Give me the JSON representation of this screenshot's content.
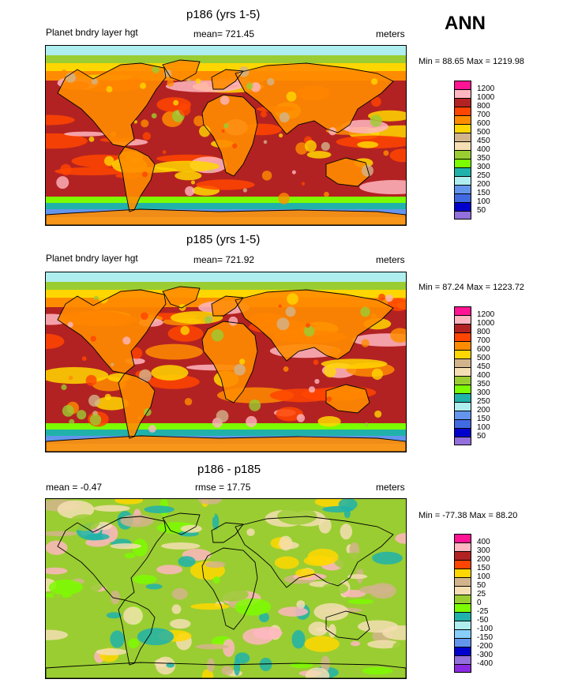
{
  "season": "ANN",
  "panels": [
    {
      "title": "p186 (yrs 1-5)",
      "left_label": "Planet bndry layer hgt",
      "center_label": "mean= 721.45",
      "units": "meters",
      "minmax": "Min =  88.65 Max = 1219.98",
      "scale": "abs",
      "levels": [
        "1200",
        "1000",
        "800",
        "700",
        "600",
        "500",
        "450",
        "400",
        "350",
        "300",
        "250",
        "200",
        "150",
        "100",
        "50"
      ],
      "colors": [
        "#ff1493",
        "#ffb6c1",
        "#b22222",
        "#ff4500",
        "#ff8c00",
        "#ffd700",
        "#d2b48c",
        "#f5deb3",
        "#9acd32",
        "#7cfc00",
        "#20b2aa",
        "#afeeee",
        "#6495ed",
        "#4169e1",
        "#0000cd",
        "#9370db"
      ]
    },
    {
      "title": "p185 (yrs 1-5)",
      "left_label": "Planet bndry layer hgt",
      "center_label": "mean= 721.92",
      "units": "meters",
      "minmax": "Min =  87.24 Max = 1223.72",
      "scale": "abs",
      "levels": [
        "1200",
        "1000",
        "800",
        "700",
        "600",
        "500",
        "450",
        "400",
        "350",
        "300",
        "250",
        "200",
        "150",
        "100",
        "50"
      ],
      "colors": [
        "#ff1493",
        "#ffb6c1",
        "#b22222",
        "#ff4500",
        "#ff8c00",
        "#ffd700",
        "#d2b48c",
        "#f5deb3",
        "#9acd32",
        "#7cfc00",
        "#20b2aa",
        "#afeeee",
        "#6495ed",
        "#4169e1",
        "#0000cd",
        "#9370db"
      ]
    },
    {
      "title": "p186 - p185",
      "left_label": "mean =  -0.47",
      "center_label": "rmse =  17.75",
      "units": "meters",
      "minmax": "Min = -77.38 Max =  88.20",
      "scale": "diff",
      "levels": [
        "400",
        "300",
        "200",
        "150",
        "100",
        "50",
        "25",
        "0",
        "-25",
        "-50",
        "-100",
        "-150",
        "-200",
        "-300",
        "-400"
      ],
      "colors": [
        "#ff1493",
        "#ffb6c1",
        "#b22222",
        "#ff4500",
        "#ffd700",
        "#d2b48c",
        "#f5deb3",
        "#9acd32",
        "#7cfc00",
        "#20b2aa",
        "#afeeee",
        "#87cefa",
        "#6495ed",
        "#0000cd",
        "#9370db",
        "#8a2be2"
      ]
    }
  ]
}
